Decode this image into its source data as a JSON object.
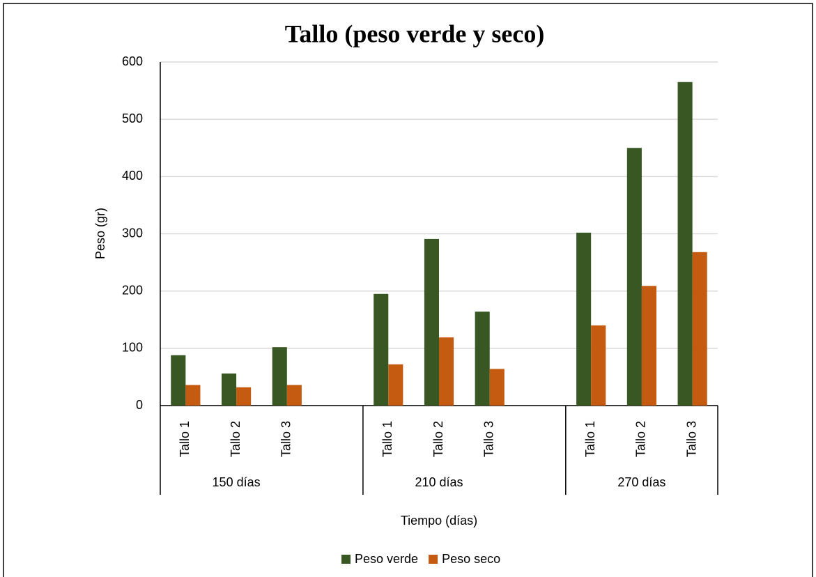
{
  "chart_data": {
    "type": "bar",
    "title": "Tallo (peso verde y seco)",
    "y_label": "Peso (gr)",
    "x_label": "Tiempo (días)",
    "groups": [
      {
        "name": "150 días",
        "categories": [
          "Tallo 1",
          "Tallo 2",
          "Tallo 3",
          null
        ]
      },
      {
        "name": "210 días",
        "categories": [
          "Tallo 1",
          "Tallo 2",
          "Tallo 3",
          null
        ]
      },
      {
        "name": "270 días",
        "categories": [
          "Tallo 1",
          "Tallo 2",
          "Tallo 3"
        ]
      }
    ],
    "series": [
      {
        "name": "Peso verde",
        "color": "#385723",
        "values": [
          88,
          56,
          102,
          null,
          195,
          291,
          164,
          null,
          302,
          450,
          565
        ]
      },
      {
        "name": "Peso seco",
        "color": "#c55a11",
        "values": [
          36,
          32,
          36,
          null,
          72,
          119,
          64,
          null,
          140,
          209,
          268
        ]
      }
    ],
    "ylim": [
      0,
      600
    ],
    "yticks": [
      0,
      100,
      200,
      300,
      400,
      500,
      600
    ],
    "grid": true,
    "legend": "bottom"
  }
}
